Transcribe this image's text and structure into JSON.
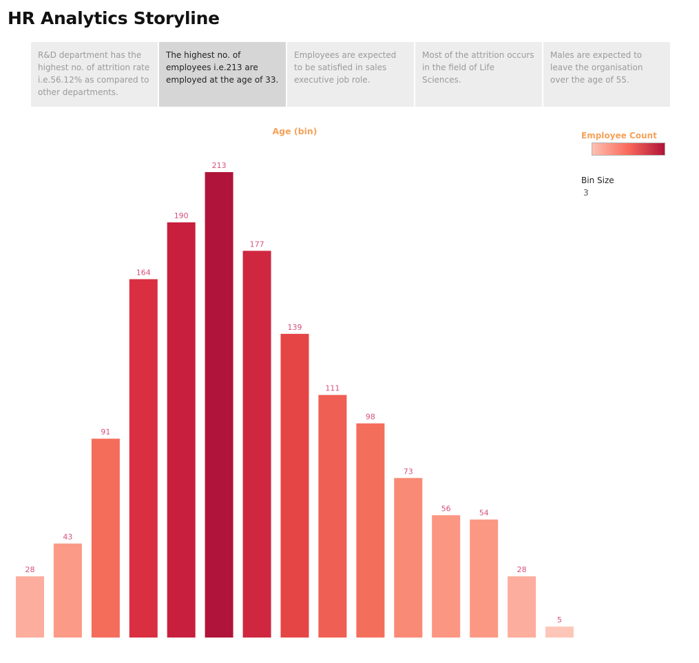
{
  "header": {
    "title": "HR Analytics Storyline"
  },
  "story_points": [
    {
      "text": "R&D department has the highest no. of attrition rate i.e.56.12% as compared to other departments.",
      "active": false
    },
    {
      "text": "The highest no. of employees i.e.213 are employed at the age of  33.",
      "active": true
    },
    {
      "text": "Employees are expected to be satisfied in sales executive job role.",
      "active": false
    },
    {
      "text": "Most of the attrition occurs in the field of Life Sciences.",
      "active": false
    },
    {
      "text": "Males are expected to leave the organisation over the age of 55.",
      "active": false
    }
  ],
  "legend": {
    "color_title": "Employee Count",
    "bin_size_label": "Bin Size",
    "bin_size_value": "3",
    "ramp_colors": [
      "#fdc1b2",
      "#f9695a",
      "#b0143a"
    ]
  },
  "chart_data": {
    "type": "bar",
    "title": "",
    "xlabel": "Age (bin)",
    "ylabel": "",
    "values": [
      28,
      43,
      91,
      164,
      190,
      213,
      177,
      139,
      111,
      98,
      73,
      56,
      54,
      28,
      5
    ],
    "ylim": [
      0,
      213
    ],
    "bar_colors": [
      "#fcad9e",
      "#fb9a86",
      "#f46d5b",
      "#d92f41",
      "#c81f3f",
      "#b0143a",
      "#cf2740",
      "#e64546",
      "#f05f53",
      "#f46e5c",
      "#f98a75",
      "#fb9682",
      "#fb9884",
      "#fcad9e",
      "#fdc6b8"
    ],
    "label_color": "#d65078",
    "grid": false,
    "show_axes": false
  }
}
